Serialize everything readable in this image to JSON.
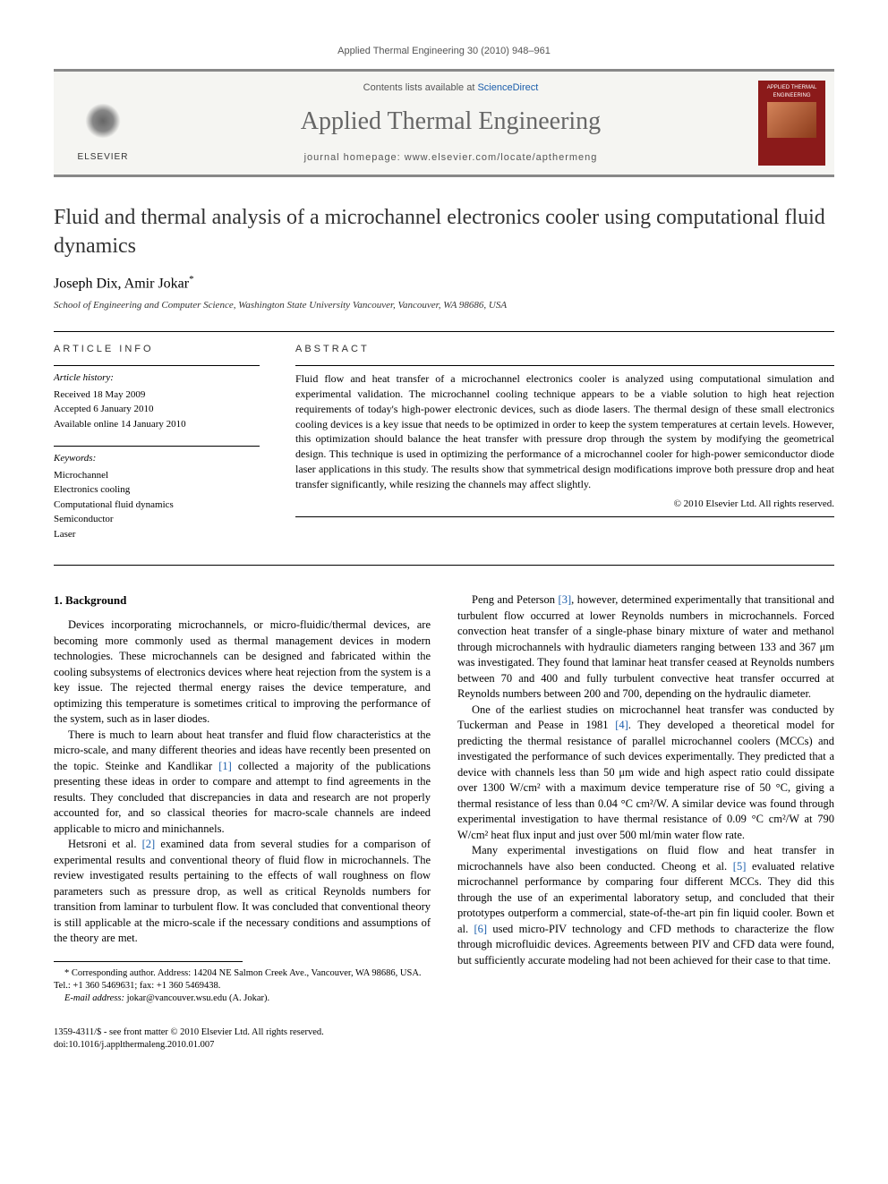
{
  "header": {
    "citation": "Applied Thermal Engineering 30 (2010) 948–961"
  },
  "masthead": {
    "publisher": "ELSEVIER",
    "contents_prefix": "Contents lists available at ",
    "contents_link": "ScienceDirect",
    "journal_title": "Applied Thermal Engineering",
    "homepage_label": "journal homepage: ",
    "homepage_url": "www.elsevier.com/locate/apthermeng",
    "cover_text": "Applied Thermal Engineering"
  },
  "article": {
    "title": "Fluid and thermal analysis of a microchannel electronics cooler using computational fluid dynamics",
    "authors": "Joseph Dix, Amir Jokar",
    "corr_mark": "*",
    "affiliation": "School of Engineering and Computer Science, Washington State University Vancouver, Vancouver, WA 98686, USA"
  },
  "info": {
    "section_label": "ARTICLE INFO",
    "history_label": "Article history:",
    "received": "Received 18 May 2009",
    "accepted": "Accepted 6 January 2010",
    "online": "Available online 14 January 2010",
    "keywords_label": "Keywords:",
    "keywords": [
      "Microchannel",
      "Electronics cooling",
      "Computational fluid dynamics",
      "Semiconductor",
      "Laser"
    ]
  },
  "abstract": {
    "label": "ABSTRACT",
    "text": "Fluid flow and heat transfer of a microchannel electronics cooler is analyzed using computational simulation and experimental validation. The microchannel cooling technique appears to be a viable solution to high heat rejection requirements of today's high-power electronic devices, such as diode lasers. The thermal design of these small electronics cooling devices is a key issue that needs to be optimized in order to keep the system temperatures at certain levels. However, this optimization should balance the heat transfer with pressure drop through the system by modifying the geometrical design. This technique is used in optimizing the performance of a microchannel cooler for high-power semiconductor diode laser applications in this study. The results show that symmetrical design modifications improve both pressure drop and heat transfer significantly, while resizing the channels may affect slightly.",
    "copyright": "© 2010 Elsevier Ltd. All rights reserved."
  },
  "body": {
    "heading1": "1. Background",
    "p1": "Devices incorporating microchannels, or micro-fluidic/thermal devices, are becoming more commonly used as thermal management devices in modern technologies. These microchannels can be designed and fabricated within the cooling subsystems of electronics devices where heat rejection from the system is a key issue. The rejected thermal energy raises the device temperature, and optimizing this temperature is sometimes critical to improving the performance of the system, such as in laser diodes.",
    "p2a": "There is much to learn about heat transfer and fluid flow characteristics at the micro-scale, and many different theories and ideas have recently been presented on the topic. Steinke and Kandlikar ",
    "p2_ref": "[1]",
    "p2b": " collected a majority of the publications presenting these ideas in order to compare and attempt to find agreements in the results. They concluded that discrepancies in data and research are not properly accounted for, and so classical theories for macro-scale channels are indeed applicable to micro and minichannels.",
    "p3a": "Hetsroni et al. ",
    "p3_ref": "[2]",
    "p3b": " examined data from several studies for a comparison of experimental results and conventional theory of fluid flow in microchannels. The review investigated results pertaining to the effects of wall roughness on flow parameters such as pressure drop, as well as critical Reynolds numbers for transition from laminar to turbulent flow. It was concluded that conventional theory is still applicable at the micro-scale if the necessary conditions and assumptions of the theory are met.",
    "p4a": "Peng and Peterson ",
    "p4_ref": "[3]",
    "p4b": ", however, determined experimentally that transitional and turbulent flow occurred at lower Reynolds numbers in microchannels. Forced convection heat transfer of a single-phase binary mixture of water and methanol through microchannels with hydraulic diameters ranging between 133 and 367 μm was investigated. They found that laminar heat transfer ceased at Reynolds numbers between 70 and 400 and fully turbulent convective heat transfer occurred at Reynolds numbers between 200 and 700, depending on the hydraulic diameter.",
    "p5a": "One of the earliest studies on microchannel heat transfer was conducted by Tuckerman and Pease in 1981 ",
    "p5_ref": "[4]",
    "p5b": ". They developed a theoretical model for predicting the thermal resistance of parallel microchannel coolers (MCCs) and investigated the performance of such devices experimentally. They predicted that a device with channels less than 50 μm wide and high aspect ratio could dissipate over 1300 W/cm² with a maximum device temperature rise of 50 °C, giving a thermal resistance of less than 0.04 °C cm²/W. A similar device was found through experimental investigation to have thermal resistance of 0.09 °C cm²/W at 790 W/cm² heat flux input and just over 500 ml/min water flow rate.",
    "p6a": "Many experimental investigations on fluid flow and heat transfer in microchannels have also been conducted. Cheong et al. ",
    "p6_ref": "[5]",
    "p6b": " evaluated relative microchannel performance by comparing four different MCCs. They did this through the use of an experimental laboratory setup, and concluded that their prototypes outperform a commercial, state-of-the-art pin fin liquid cooler. Bown et al. ",
    "p6_ref2": "[6]",
    "p6c": " used micro-PIV technology and CFD methods to characterize the flow through microfluidic devices. Agreements between PIV and CFD data were found, but sufficiently accurate modeling had not been achieved for their case to that time."
  },
  "footnotes": {
    "corr": "* Corresponding author. Address: 14204 NE Salmon Creek Ave., Vancouver, WA 98686, USA. Tel.: +1 360 5469631; fax: +1 360 5469438.",
    "email_label": "E-mail address: ",
    "email": "jokar@vancouver.wsu.edu",
    "email_suffix": " (A. Jokar)."
  },
  "footer": {
    "line1": "1359-4311/$ - see front matter © 2010 Elsevier Ltd. All rights reserved.",
    "line2": "doi:10.1016/j.applthermaleng.2010.01.007"
  },
  "colors": {
    "text": "#000000",
    "link": "#1a5dab",
    "journal_gray": "#666666",
    "cover_bg": "#8b1a1a",
    "masthead_bg": "#f5f5f2"
  }
}
